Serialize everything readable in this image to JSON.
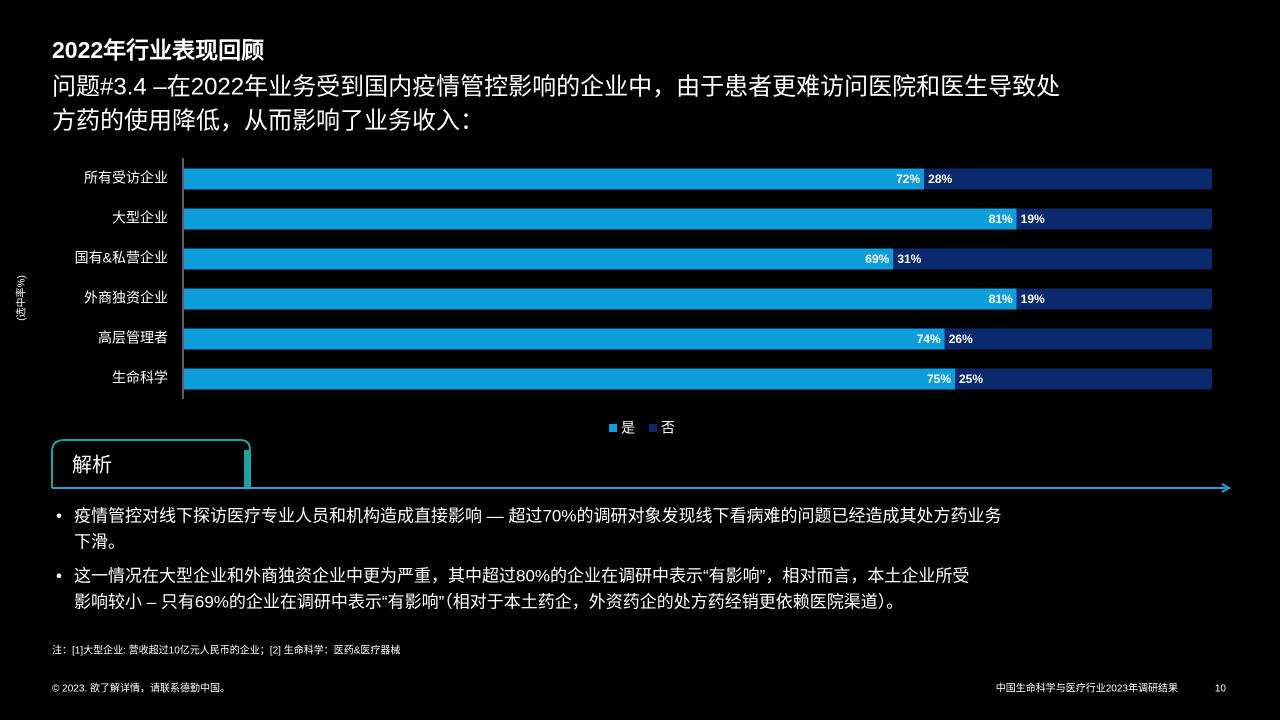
{
  "header": {
    "title": "2022年行业表现回顾",
    "question": [
      "问题#3.4 –在2022年业务受到国内疫情管控影响的企业中，由于患者更难访问医院和医生导致处",
      "方药的使用降低，从而影响了业务收入："
    ]
  },
  "chart_data": {
    "type": "stacked-hbar",
    "y_label": "(选中率%)",
    "categories": [
      "所有受访企业",
      "大型企业",
      "国有&私营企业",
      "外商独资企业",
      "高层管理者",
      "生命科学"
    ],
    "series": [
      {
        "name": "是",
        "color": "#0e9ddd",
        "values": [
          72,
          81,
          69,
          81,
          74,
          75
        ],
        "value_labels": [
          "72%",
          "81%",
          "69%",
          "81%",
          "74%",
          "75%"
        ]
      },
      {
        "name": "否",
        "color": "#0b2a6e",
        "values": [
          28,
          19,
          31,
          19,
          26,
          25
        ],
        "value_labels": [
          "28%",
          "19%",
          "31%",
          "19%",
          "26%",
          "25%"
        ]
      }
    ],
    "xlim": [
      0,
      100
    ],
    "legend": "bottom"
  },
  "analysis": {
    "heading": "解析",
    "bullets": [
      [
        "疫情管控对线下探访医疗专业人员和机构造成直接影响 — 超过70%的调研对象发现线下看病难的问题已经造成其处方药业务",
        "下滑。"
      ],
      [
        "这一情况在大型企业和外商独资企业中更为严重，其中超过80%的企业在调研中表示“有影响”，相对而言，本土企业所受",
        "影响较小 – 只有69%的企业在调研中表示“有影响”（相对于本土药企，外资药企的处方药经销更依赖医院渠道）。"
      ]
    ]
  },
  "note": "注：[1]大型企业: 营收超过10亿元人民币的企业；[2] 生命科学：医药&医疗器械",
  "footer": {
    "copyright": "© 2023. 欲了解详情，请联系德勤中国。",
    "report": "中国生命科学与医疗行业2023年调研结果",
    "page": "10"
  }
}
